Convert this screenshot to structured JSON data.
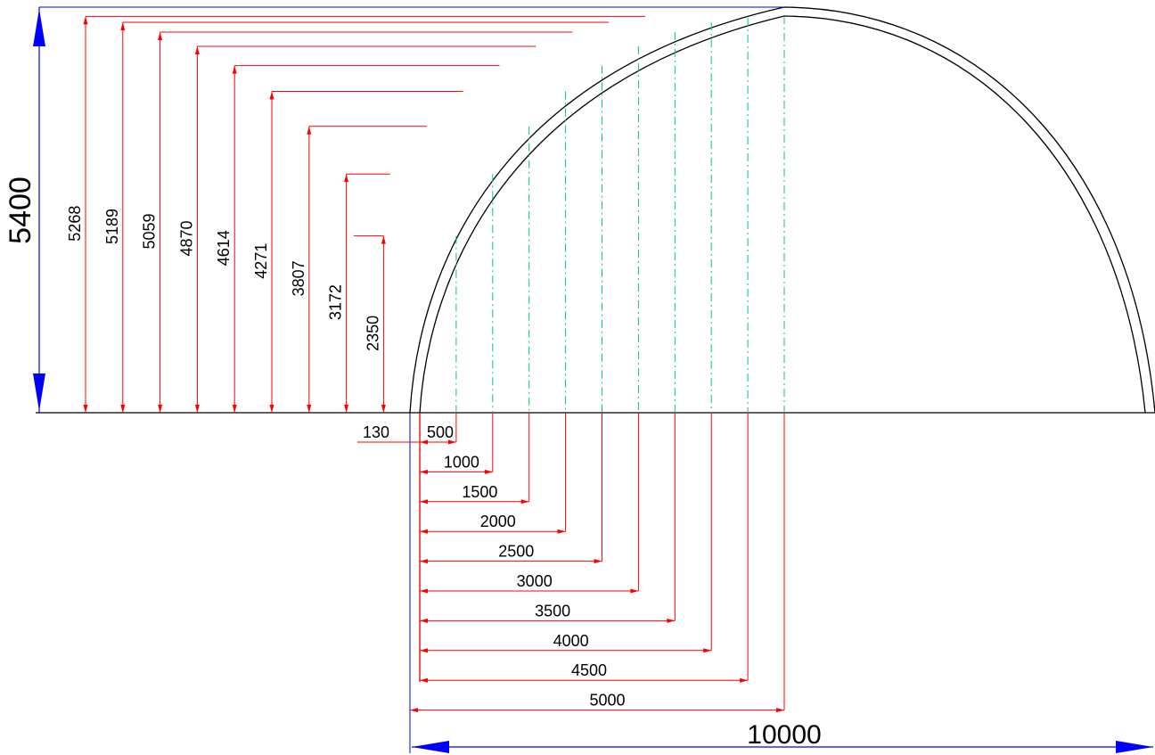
{
  "colors": {
    "dimension": "#ff0000",
    "overall_dimension": "#0000ff",
    "arch": "#000000",
    "guide": "#00cc66",
    "text": "#000000"
  },
  "overall": {
    "height_label": "5400",
    "width_label": "10000"
  },
  "offset_label": "130",
  "heights": [
    {
      "label": "5268",
      "value": 5268
    },
    {
      "label": "5189",
      "value": 5189
    },
    {
      "label": "5059",
      "value": 5059
    },
    {
      "label": "4870",
      "value": 4870
    },
    {
      "label": "4614",
      "value": 4614
    },
    {
      "label": "4271",
      "value": 4271
    },
    {
      "label": "3807",
      "value": 3807
    },
    {
      "label": "3172",
      "value": 3172
    },
    {
      "label": "2350",
      "value": 2350
    }
  ],
  "stations": [
    {
      "label": "500",
      "value": 500
    },
    {
      "label": "1000",
      "value": 1000
    },
    {
      "label": "1500",
      "value": 1500
    },
    {
      "label": "2000",
      "value": 2000
    },
    {
      "label": "2500",
      "value": 2500
    },
    {
      "label": "3000",
      "value": 3000
    },
    {
      "label": "3500",
      "value": 3500
    },
    {
      "label": "4000",
      "value": 4000
    },
    {
      "label": "4500",
      "value": 4500
    },
    {
      "label": "5000",
      "value": 5000
    }
  ]
}
